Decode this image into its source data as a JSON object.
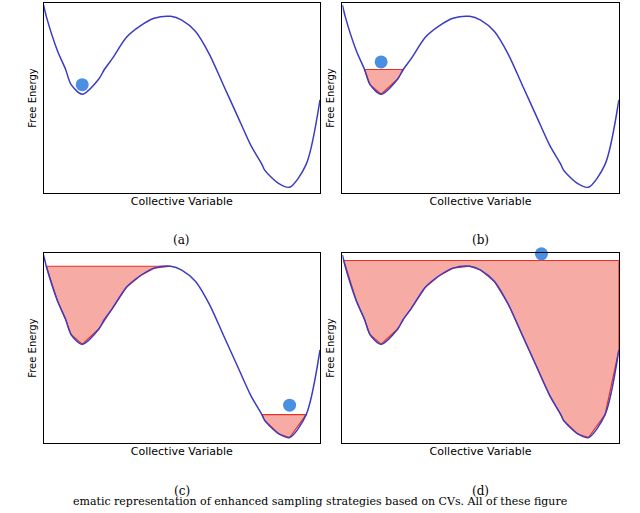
{
  "caption": "ematic representation of enhanced sampling strategies based on CVs. All of these figure",
  "chart_data": [
    {
      "type": "line",
      "title": "(a)",
      "x_label": "Collective Variable",
      "y_label": "Free Energy",
      "xlim": [
        0,
        10
      ],
      "ylim": [
        0,
        10
      ],
      "tick_labels": false,
      "grid": false,
      "x": [
        0,
        0.05,
        0.1,
        0.5,
        0.8,
        1.0,
        1.4,
        2.0,
        2.2,
        2.5,
        3.0,
        3.5,
        4.0,
        4.6,
        5.0,
        5.5,
        6.0,
        6.5,
        7.0,
        7.5,
        7.9,
        8.0,
        8.5,
        8.9,
        9.5,
        10
      ],
      "series": [
        {
          "type": "line",
          "color": "#3b3bc4",
          "values": [
            9.9,
            9.6,
            9.3,
            7.5,
            6.5,
            5.7,
            5.2,
            6.0,
            6.5,
            7.1,
            8.2,
            8.8,
            9.2,
            9.3,
            9.1,
            8.5,
            7.3,
            5.7,
            4.1,
            2.5,
            1.5,
            1.2,
            0.5,
            0.3,
            1.5,
            4.9
          ]
        },
        {
          "type": "scatter",
          "marker": "circle",
          "color": "#4a90e2",
          "x": [
            1.4
          ],
          "values": [
            5.7
          ]
        }
      ]
    },
    {
      "type": "line",
      "title": "(b)",
      "x_label": "Collective Variable",
      "y_label": "Free Energy",
      "xlim": [
        0,
        10
      ],
      "ylim": [
        0,
        10
      ],
      "tick_labels": false,
      "grid": false,
      "x": [
        0,
        0.05,
        0.1,
        0.5,
        0.8,
        1.0,
        1.4,
        2.0,
        2.2,
        2.5,
        3.0,
        3.5,
        4.0,
        4.6,
        5.0,
        5.5,
        6.0,
        6.5,
        7.0,
        7.5,
        7.9,
        8.0,
        8.5,
        8.9,
        9.5,
        10
      ],
      "series": [
        {
          "type": "area",
          "color": "#e8301e",
          "values": [
            null,
            null,
            null,
            null,
            6.5,
            6.5,
            6.5,
            6.5,
            6.5,
            null,
            null,
            null,
            null,
            null,
            null,
            null,
            null,
            null,
            null,
            null,
            null,
            null,
            null,
            null,
            null,
            null
          ]
        },
        {
          "type": "line",
          "color": "#3b3bc4",
          "values": [
            9.9,
            9.6,
            9.3,
            7.5,
            6.5,
            5.7,
            5.2,
            6.0,
            6.5,
            7.1,
            8.2,
            8.8,
            9.2,
            9.3,
            9.1,
            8.5,
            7.3,
            5.7,
            4.1,
            2.5,
            1.5,
            1.2,
            0.5,
            0.3,
            1.5,
            4.9
          ]
        },
        {
          "type": "scatter",
          "marker": "circle",
          "color": "#4a90e2",
          "x": [
            1.4
          ],
          "values": [
            6.9
          ]
        }
      ]
    },
    {
      "type": "line",
      "title": "(c)",
      "x_label": "Collective Variable",
      "y_label": "Free Energy",
      "xlim": [
        0,
        10
      ],
      "ylim": [
        0,
        10
      ],
      "tick_labels": false,
      "grid": false,
      "x": [
        0,
        0.05,
        0.1,
        0.5,
        0.8,
        1.0,
        1.4,
        2.0,
        2.2,
        2.5,
        3.0,
        3.5,
        4.0,
        4.6,
        5.0,
        5.5,
        6.0,
        6.5,
        7.0,
        7.5,
        7.9,
        8.0,
        8.5,
        8.9,
        9.5,
        10
      ],
      "series": [
        {
          "type": "area",
          "color": "#e8301e",
          "values": [
            null,
            null,
            9.3,
            9.3,
            9.3,
            9.3,
            9.3,
            9.3,
            9.3,
            9.3,
            9.3,
            9.3,
            9.3,
            9.3,
            null,
            null,
            null,
            null,
            null,
            null,
            1.5,
            1.5,
            1.5,
            1.5,
            1.5,
            null
          ]
        },
        {
          "type": "line",
          "color": "#3b3bc4",
          "values": [
            9.9,
            9.6,
            9.3,
            7.5,
            6.5,
            5.7,
            5.2,
            6.0,
            6.5,
            7.1,
            8.2,
            8.8,
            9.2,
            9.3,
            9.1,
            8.5,
            7.3,
            5.7,
            4.1,
            2.5,
            1.5,
            1.2,
            0.5,
            0.3,
            1.5,
            4.9
          ]
        },
        {
          "type": "scatter",
          "marker": "circle",
          "color": "#4a90e2",
          "x": [
            8.9
          ],
          "values": [
            2.0
          ]
        }
      ]
    },
    {
      "type": "line",
      "title": "(d)",
      "x_label": "Collective Variable",
      "y_label": "Free Energy",
      "xlim": [
        0,
        10
      ],
      "ylim": [
        0,
        10
      ],
      "tick_labels": false,
      "grid": false,
      "x": [
        0,
        0.05,
        0.1,
        0.5,
        0.8,
        1.0,
        1.4,
        2.0,
        2.2,
        2.5,
        3.0,
        3.5,
        4.0,
        4.6,
        5.0,
        5.5,
        6.0,
        6.5,
        7.0,
        7.5,
        7.9,
        8.0,
        8.5,
        8.9,
        9.5,
        10
      ],
      "series": [
        {
          "type": "area",
          "color": "#e8301e",
          "values": [
            null,
            9.6,
            9.6,
            9.6,
            9.6,
            9.6,
            9.6,
            9.6,
            9.6,
            9.6,
            9.6,
            9.6,
            9.6,
            9.6,
            9.6,
            9.6,
            9.6,
            9.6,
            9.6,
            9.6,
            9.6,
            9.6,
            9.6,
            9.6,
            9.6,
            9.6
          ]
        },
        {
          "type": "line",
          "color": "#3b3bc4",
          "values": [
            9.9,
            9.6,
            9.3,
            7.5,
            6.5,
            5.7,
            5.2,
            6.0,
            6.5,
            7.1,
            8.2,
            8.8,
            9.2,
            9.3,
            9.1,
            8.5,
            7.3,
            5.7,
            4.1,
            2.5,
            1.5,
            1.2,
            0.5,
            0.3,
            1.5,
            4.9
          ]
        },
        {
          "type": "scatter",
          "marker": "circle",
          "color": "#4a90e2",
          "x": [
            7.2
          ],
          "values": [
            9.95
          ]
        }
      ]
    }
  ]
}
